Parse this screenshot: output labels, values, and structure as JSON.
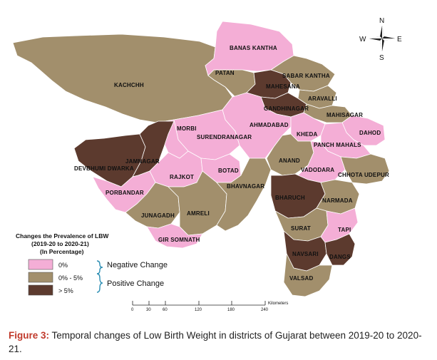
{
  "legend": {
    "title_lines": [
      "Changes the Prevalence of LBW",
      "(2019-20 to 2020-21)",
      "(In Percentage)"
    ],
    "items": [
      {
        "label": "0%",
        "color": "#f4aed6"
      },
      {
        "label": "0% - 5%",
        "color": "#a28f6c"
      },
      {
        "label": "> 5%",
        "color": "#5c3a2e"
      }
    ],
    "negative_label": "Negative Change",
    "positive_label": "Positive Change",
    "brace_color": "#2e8fb4"
  },
  "compass": {
    "n": "N",
    "s": "S",
    "e": "E",
    "w": "W"
  },
  "scale": {
    "ticks": [
      "0",
      "30",
      "60",
      "120",
      "180",
      "240"
    ],
    "unit": "Kilometers"
  },
  "districts": [
    {
      "name": "BANAS KANTHA",
      "class": "0%"
    },
    {
      "name": "KACHCHH",
      "class": "0% - 5%"
    },
    {
      "name": "PATAN",
      "class": "0% - 5%"
    },
    {
      "name": "SABAR KANTHA",
      "class": "0% - 5%"
    },
    {
      "name": "MAHESANA",
      "class": "> 5%"
    },
    {
      "name": "ARAVALLI",
      "class": "0% - 5%"
    },
    {
      "name": "GANDHINAGAR",
      "class": "> 5%"
    },
    {
      "name": "MAHISAGAR",
      "class": "0% - 5%"
    },
    {
      "name": "AHMADABAD",
      "class": "0%"
    },
    {
      "name": "MORBI",
      "class": "0%"
    },
    {
      "name": "SURENDRANAGAR",
      "class": "0%"
    },
    {
      "name": "KHEDA",
      "class": "0%"
    },
    {
      "name": "DAHOD",
      "class": "0%"
    },
    {
      "name": "PANCH MAHALS",
      "class": "0%"
    },
    {
      "name": "JAMNAGAR",
      "class": "> 5%"
    },
    {
      "name": "DEVBHUMI DWARKA",
      "class": "> 5%"
    },
    {
      "name": "ANAND",
      "class": "0% - 5%"
    },
    {
      "name": "VADODARA",
      "class": "0%"
    },
    {
      "name": "CHHOTA UDEPUR",
      "class": "0% - 5%"
    },
    {
      "name": "RAJKOT",
      "class": "0%"
    },
    {
      "name": "BOTAD",
      "class": "0%"
    },
    {
      "name": "PORBANDAR",
      "class": "0%"
    },
    {
      "name": "BHARUCH",
      "class": "> 5%"
    },
    {
      "name": "NARMADA",
      "class": "0% - 5%"
    },
    {
      "name": "BHAVNAGAR",
      "class": "0% - 5%"
    },
    {
      "name": "JUNAGADH",
      "class": "0% - 5%"
    },
    {
      "name": "AMRELI",
      "class": "0% - 5%"
    },
    {
      "name": "SURAT",
      "class": "0% - 5%"
    },
    {
      "name": "TAPI",
      "class": "0%"
    },
    {
      "name": "GIR SOMNATH",
      "class": "0%"
    },
    {
      "name": "NAVSARI",
      "class": "> 5%"
    },
    {
      "name": "DANGS",
      "class": "> 5%"
    },
    {
      "name": "VALSAD",
      "class": "0% - 5%"
    }
  ],
  "caption": {
    "figure_label": "Figure 3:",
    "text": "Temporal changes of Low Birth Weight in districts of Gujarat between 2019-20 to 2020-21."
  }
}
